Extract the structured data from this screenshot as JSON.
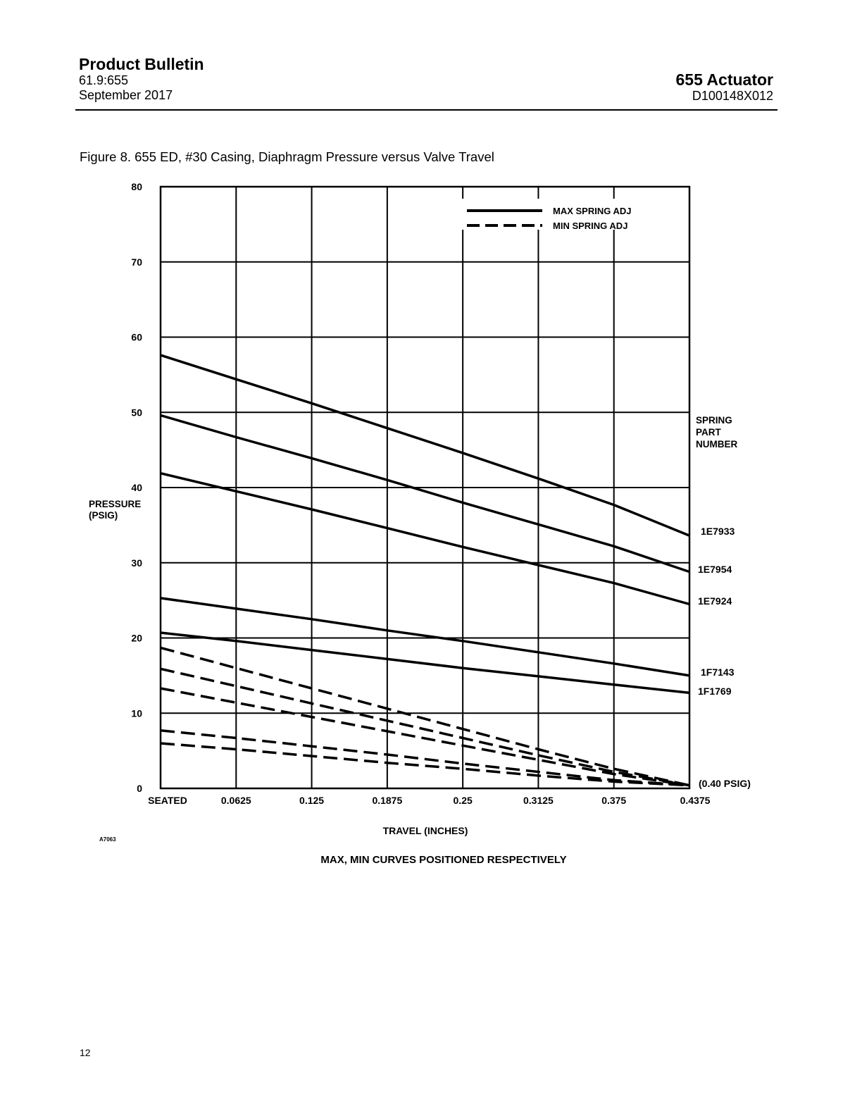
{
  "header": {
    "doc_type": "Product Bulletin",
    "bulletin_number": "61.9:655",
    "date": "September 2017",
    "product": "655 Actuator",
    "doc_id": "D100148X012"
  },
  "figure": {
    "caption": "Figure 8. 655 ED, #30 Casing, Diaphragm Pressure versus Valve Travel",
    "art_id": "A7063",
    "note": "MAX, MIN CURVES POSITIONED RESPECTIVELY"
  },
  "chart_data": {
    "type": "line",
    "ylabel": "PRESSURE\n(PSIG)",
    "xlabel": "TRAVEL (INCHES)",
    "x": [
      0,
      0.0625,
      0.125,
      0.1875,
      0.25,
      0.3125,
      0.375,
      0.4375
    ],
    "x_tick_labels": [
      "SEATED",
      "0.0625",
      "0.125",
      "0.1875",
      "0.25",
      "0.3125",
      "0.375",
      "0.4375"
    ],
    "y_ticks": [
      0,
      10,
      20,
      30,
      40,
      50,
      60,
      70,
      80
    ],
    "ylim": [
      0,
      80
    ],
    "xlim": [
      0,
      0.4375
    ],
    "grid": true,
    "legend": {
      "position": "top-right",
      "entries": [
        {
          "label": "MAX SPRING ADJ",
          "style": "solid"
        },
        {
          "label": "MIN SPRING ADJ",
          "style": "dashed"
        }
      ]
    },
    "right_label": "SPRING\nPART\nNUMBER",
    "endpoint_annotation": "(0.40 PSIG)",
    "series": [
      {
        "label": "1E7933",
        "style": "solid",
        "values": [
          57.6,
          54.4,
          51.2,
          47.9,
          44.6,
          41.2,
          37.7,
          33.6
        ]
      },
      {
        "label": "1E7954",
        "style": "solid",
        "values": [
          49.6,
          46.7,
          43.9,
          41.0,
          38.0,
          35.1,
          32.2,
          28.8
        ]
      },
      {
        "label": "1E7924",
        "style": "solid",
        "values": [
          41.9,
          39.5,
          37.1,
          34.6,
          32.1,
          29.7,
          27.3,
          24.5
        ]
      },
      {
        "label": "1F7143",
        "style": "solid",
        "values": [
          25.3,
          23.9,
          22.5,
          21.0,
          19.6,
          18.1,
          16.6,
          15.0
        ]
      },
      {
        "label": "1F1769",
        "style": "solid",
        "values": [
          20.7,
          19.6,
          18.4,
          17.2,
          16.0,
          14.9,
          13.8,
          12.7
        ]
      },
      {
        "style": "dashed",
        "values": [
          18.7,
          16.0,
          13.3,
          10.6,
          7.9,
          5.2,
          2.6,
          0.4
        ]
      },
      {
        "style": "dashed",
        "values": [
          15.9,
          13.6,
          11.3,
          9.0,
          6.7,
          4.4,
          2.2,
          0.4
        ]
      },
      {
        "style": "dashed",
        "values": [
          13.3,
          11.4,
          9.5,
          7.6,
          5.7,
          3.8,
          1.9,
          0.4
        ]
      },
      {
        "style": "dashed",
        "values": [
          7.7,
          6.7,
          5.6,
          4.5,
          3.3,
          2.2,
          1.1,
          0.4
        ]
      },
      {
        "style": "dashed",
        "values": [
          6.0,
          5.2,
          4.3,
          3.4,
          2.6,
          1.7,
          0.9,
          0.4
        ]
      }
    ]
  },
  "footer": {
    "page_number": "12"
  }
}
